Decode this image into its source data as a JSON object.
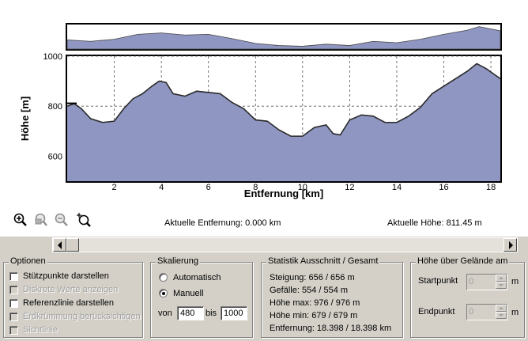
{
  "chart": {
    "ylabel": "Höhe [m]",
    "xlabel": "Entfernung [km]"
  },
  "chart_data": {
    "type": "area",
    "xlabel": "Entfernung [km]",
    "ylabel": "Höhe [m]",
    "xlim": [
      0,
      18.4
    ],
    "ylim": [
      500,
      1000
    ],
    "x_ticks": [
      "2",
      "4",
      "6",
      "8",
      "10",
      "12",
      "14",
      "16",
      "18"
    ],
    "y_ticks": [
      "600",
      "800",
      "1000"
    ],
    "grid": true,
    "reference_line": 811.45,
    "x": [
      0,
      0.3,
      0.6,
      1.0,
      1.5,
      2.0,
      2.4,
      2.8,
      3.2,
      3.6,
      3.9,
      4.2,
      4.5,
      5.0,
      5.5,
      6.0,
      6.5,
      7.0,
      7.5,
      8.0,
      8.5,
      9.0,
      9.5,
      10.0,
      10.5,
      11.0,
      11.3,
      11.6,
      12.0,
      12.5,
      13.0,
      13.5,
      14.0,
      14.5,
      15.0,
      15.5,
      16.0,
      16.5,
      17.0,
      17.4,
      17.8,
      18.1,
      18.4
    ],
    "y": [
      800,
      810,
      790,
      750,
      735,
      740,
      790,
      830,
      850,
      880,
      900,
      895,
      850,
      840,
      860,
      855,
      850,
      815,
      790,
      745,
      740,
      705,
      680,
      680,
      715,
      725,
      690,
      685,
      745,
      765,
      760,
      735,
      735,
      760,
      795,
      850,
      880,
      910,
      940,
      970,
      950,
      930,
      910
    ],
    "series": [
      {
        "name": "overview",
        "x": [
          0,
          1,
          2,
          3,
          4,
          5,
          6,
          7,
          8,
          9,
          10,
          11,
          12,
          13,
          14,
          15,
          16,
          17,
          17.5,
          18.4
        ],
        "y": [
          780,
          760,
          790,
          860,
          880,
          850,
          860,
          800,
          730,
          700,
          690,
          720,
          700,
          760,
          740,
          790,
          860,
          920,
          970,
          910
        ]
      }
    ]
  },
  "toolbar": {
    "icons": [
      "zoom-in-icon",
      "zoom-window-icon",
      "zoom-out-icon",
      "zoom-fit-icon"
    ]
  },
  "status": {
    "distance": "Aktuelle Entfernung: 0.000 km",
    "height": "Aktuelle Höhe: 811.45 m"
  },
  "options": {
    "title": "Optionen",
    "items": [
      {
        "label": "Stützpunkte darstellen",
        "checked": false,
        "enabled": true
      },
      {
        "label": "Diskrete Werte anzeigen",
        "checked": false,
        "enabled": false
      },
      {
        "label": "Referenzlinie darstellen",
        "checked": false,
        "enabled": true
      },
      {
        "label": "Erdkrümmung berücksichtigen",
        "checked": false,
        "enabled": false
      },
      {
        "label": "Sichtlinie",
        "checked": false,
        "enabled": false
      }
    ]
  },
  "scaling": {
    "title": "Skalierung",
    "auto_label": "Automatisch",
    "manual_label": "Manuell",
    "selected": "Manuell",
    "from_label": "von",
    "from_value": "480",
    "to_label": "bis",
    "to_value": "1000"
  },
  "statistics": {
    "title": "Statistik  Ausschnitt / Gesamt",
    "rows": [
      "Steigung: 656 / 656 m",
      "Gefälle: 554 / 554 m",
      "Höhe max: 976 / 976 m",
      "Höhe min: 679 / 679 m",
      "Entfernung: 18.398 / 18.398 km"
    ]
  },
  "terrain": {
    "title": "Höhe über Gelände am",
    "start_label": "Startpunkt",
    "start_value": "0",
    "start_unit": "m",
    "end_label": "Endpunkt",
    "end_value": "0",
    "end_unit": "m"
  }
}
